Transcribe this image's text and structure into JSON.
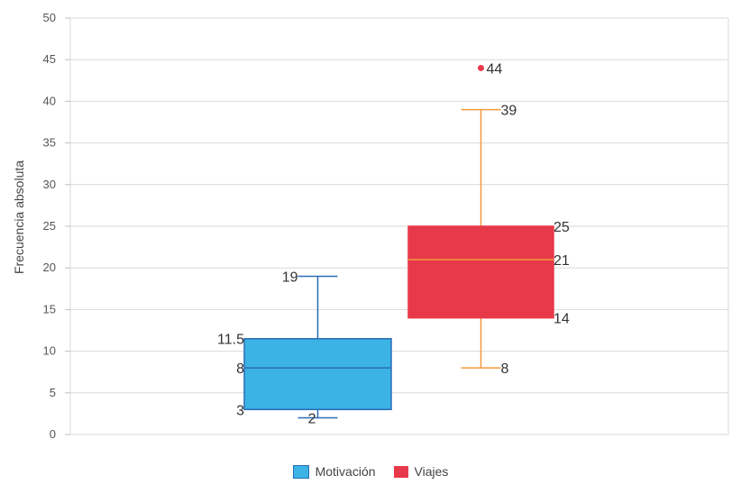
{
  "chart_data": {
    "type": "box",
    "ylabel": "Frecuencia absoluta",
    "ylim": [
      0,
      50
    ],
    "yticks": [
      0,
      5,
      10,
      15,
      20,
      25,
      30,
      35,
      40,
      45,
      50
    ],
    "grid": true,
    "legend_position": "bottom",
    "series": [
      {
        "name": "Motivación",
        "color": "#3bb3e5",
        "stroke": "#2a6db5",
        "min": 2,
        "q1": 3,
        "median": 8,
        "q3": 11.5,
        "max": 19,
        "outliers": [],
        "labels": {
          "min": "2",
          "q1": "3",
          "median": "8",
          "q3": "11.5",
          "max": "19"
        }
      },
      {
        "name": "Viajes",
        "color": "#e8394a",
        "stroke": "#f39a3c",
        "min": 8,
        "q1": 14,
        "median": 21,
        "q3": 25,
        "max": 39,
        "outliers": [
          44
        ],
        "labels": {
          "min": "8",
          "q1": "14",
          "median": "21",
          "q3": "25",
          "max": "39",
          "outliers": [
            "44"
          ]
        }
      }
    ]
  }
}
